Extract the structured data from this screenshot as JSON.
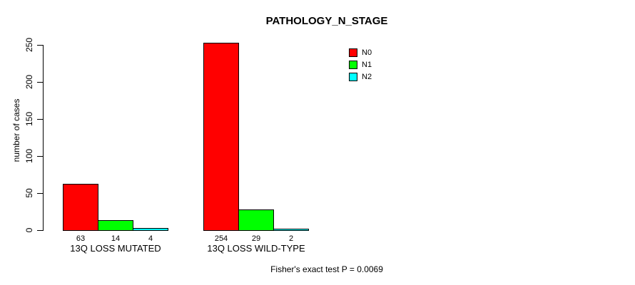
{
  "chart_data": {
    "type": "bar",
    "title": "PATHOLOGY_N_STAGE",
    "xlabel": "",
    "ylabel": "number of cases",
    "categories": [
      "13Q LOSS MUTATED",
      "13Q LOSS WILD-TYPE"
    ],
    "series": [
      {
        "name": "N0",
        "color": "#ff0000",
        "values": [
          63,
          254
        ]
      },
      {
        "name": "N1",
        "color": "#00ff00",
        "values": [
          14,
          29
        ]
      },
      {
        "name": "N2",
        "color": "#00ffff",
        "values": [
          4,
          2
        ]
      }
    ],
    "yticks": [
      0,
      50,
      100,
      150,
      200,
      250
    ],
    "ylim": [
      0,
      260
    ],
    "grid": false,
    "legend_position": "top-right",
    "bar_value_labels_shown": true,
    "annotation": "Fisher's exact test P = 0.0069"
  }
}
